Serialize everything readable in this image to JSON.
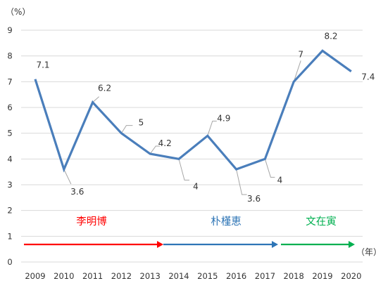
{
  "chart_data": {
    "type": "line",
    "y_unit_label": "（%）",
    "x_unit_label": "（年）",
    "x": [
      "2009",
      "2010",
      "2011",
      "2012",
      "2013",
      "2014",
      "2015",
      "2016",
      "2017",
      "2018",
      "2019",
      "2020"
    ],
    "series": [
      {
        "values": [
          7.1,
          3.6,
          6.2,
          5,
          4.2,
          4,
          4.9,
          3.6,
          4,
          7,
          8.2,
          7.4
        ],
        "labels": [
          "7.1",
          "3.6",
          "6.2",
          "5",
          "4.2",
          "4",
          "4.9",
          "3.6",
          "4",
          "7",
          "8.2",
          "7.4"
        ],
        "color": "#4a7ebb"
      }
    ],
    "ylim": [
      0,
      9
    ],
    "yticks": [
      0,
      1,
      2,
      3,
      4,
      5,
      6,
      7,
      8,
      9
    ],
    "grid": true,
    "annotations": [
      {
        "text": "李明博",
        "start": "2009",
        "end": "2013",
        "color": "#ff0000"
      },
      {
        "text": "朴槿恵",
        "start": "2014",
        "end": "2017",
        "color": "#2e75b6"
      },
      {
        "text": "文在寅",
        "start": "2018",
        "end": "2020",
        "color": "#00b050"
      }
    ]
  }
}
